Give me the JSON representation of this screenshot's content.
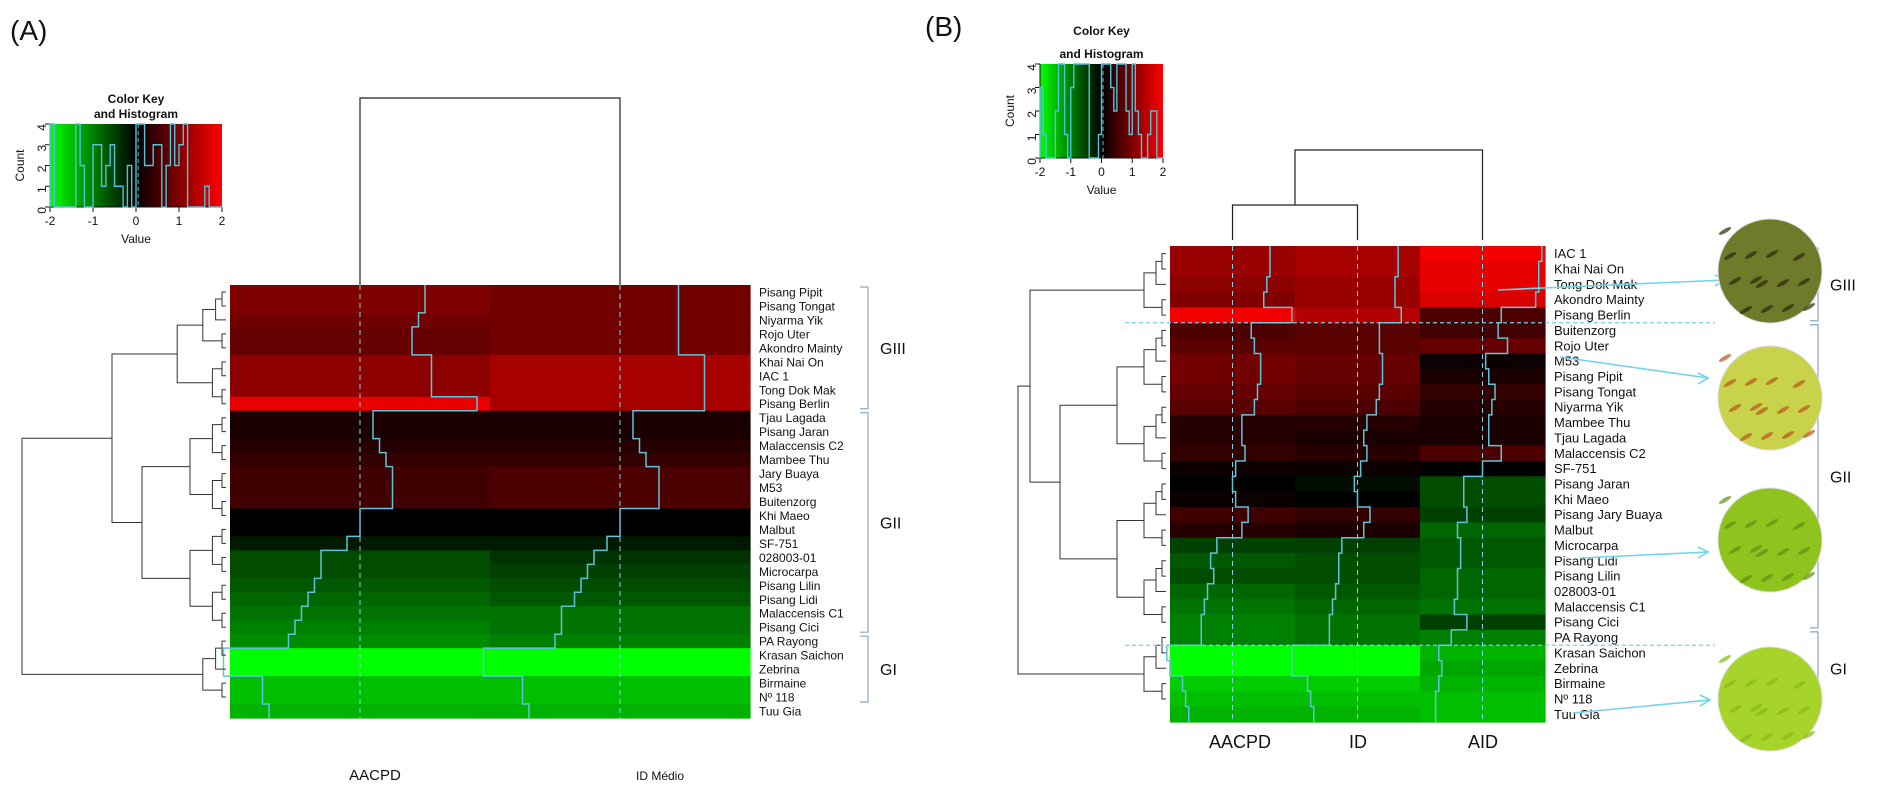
{
  "panels": [
    {
      "label": "(A)",
      "color_key": {
        "title_line1": "Color Key",
        "title_line2": "and Histogram",
        "xlabel": "Value",
        "ylabel": "Count",
        "xticks": [
          "-2",
          "-1",
          "0",
          "1",
          "2"
        ],
        "yticks": [
          "0",
          "1",
          "2",
          "3",
          "4"
        ]
      },
      "columns": [
        "AACPD",
        "ID Médio"
      ],
      "groups": [
        {
          "name": "GIII",
          "first_row": 0,
          "last_row": 8
        },
        {
          "name": "GII",
          "first_row": 9,
          "last_row": 24
        },
        {
          "name": "GI",
          "first_row": 25,
          "last_row": 29
        }
      ]
    },
    {
      "label": "(B)",
      "color_key": {
        "title_line1": "Color Key",
        "title_line2": "and Histogram",
        "xlabel": "Value",
        "ylabel": "Count",
        "xticks": [
          "-2",
          "-1",
          "0",
          "1",
          "2"
        ],
        "yticks": [
          "0",
          "1",
          "2",
          "3",
          "4"
        ]
      },
      "columns": [
        "AACPD",
        "ID",
        "AID"
      ],
      "groups": [
        {
          "name": "GIII",
          "first_row": 0,
          "last_row": 4
        },
        {
          "name": "GII",
          "first_row": 5,
          "last_row": 24
        },
        {
          "name": "GI",
          "first_row": 25,
          "last_row": 29
        }
      ]
    }
  ],
  "chart_data": [
    {
      "type": "heatmap",
      "title": "",
      "xlabel": "",
      "ylabel": "",
      "value_range": [
        -2,
        2
      ],
      "colormap": "green-black-red",
      "columns": [
        "AACPD",
        "ID Médio"
      ],
      "rows": [
        "Pisang Pipit",
        "Pisang Tongat",
        "Niyarma Yik",
        "Rojo Uter",
        "Akondro Mainty",
        "Khai Nai On",
        "IAC 1",
        "Tong Dok Mak",
        "Pisang Berlin",
        "Tjau Lagada",
        "Pisang Jaran",
        "Malaccensis C2",
        "Mambee Thu",
        "Jary Buaya",
        "M53",
        "Buitenzorg",
        "Khi Maeo",
        "Malbut",
        "SF-751",
        "028003-01",
        "Microcarpa",
        "Pisang Lilin",
        "Pisang Lidi",
        "Malaccensis C1",
        "Pisang Cici",
        "PA Rayong",
        "Krasan Saichon",
        "Zebrina",
        "Birmaine",
        "Nº 118",
        "Tuu Gia"
      ],
      "values": [
        [
          1.0,
          0.9
        ],
        [
          1.0,
          0.9
        ],
        [
          0.9,
          0.9
        ],
        [
          0.8,
          0.9
        ],
        [
          0.8,
          0.9
        ],
        [
          1.1,
          1.3
        ],
        [
          1.1,
          1.3
        ],
        [
          1.1,
          1.3
        ],
        [
          1.8,
          1.3
        ],
        [
          0.2,
          0.2
        ],
        [
          0.2,
          0.2
        ],
        [
          0.3,
          0.3
        ],
        [
          0.4,
          0.4
        ],
        [
          0.5,
          0.6
        ],
        [
          0.5,
          0.6
        ],
        [
          0.5,
          0.6
        ],
        [
          0.0,
          0.0
        ],
        [
          0.0,
          0.0
        ],
        [
          -0.2,
          -0.2
        ],
        [
          -0.6,
          -0.4
        ],
        [
          -0.6,
          -0.5
        ],
        [
          -0.7,
          -0.6
        ],
        [
          -0.8,
          -0.7
        ],
        [
          -0.9,
          -0.9
        ],
        [
          -1.0,
          -0.9
        ],
        [
          -1.1,
          -1.0
        ],
        [
          -2.1,
          -2.1
        ],
        [
          -2.1,
          -2.1
        ],
        [
          -1.5,
          -1.5
        ],
        [
          -1.5,
          -1.5
        ],
        [
          -1.4,
          -1.4
        ]
      ]
    },
    {
      "type": "heatmap",
      "title": "",
      "xlabel": "",
      "ylabel": "",
      "value_range": [
        -2,
        2
      ],
      "colormap": "green-black-red",
      "columns": [
        "AACPD",
        "ID",
        "AID"
      ],
      "rows": [
        "IAC 1",
        "Khai Nai On",
        "Tong Dok Mak",
        "Akondro Mainty",
        "Pisang Berlin",
        "Buitenzorg",
        "Rojo Uter",
        "M53",
        "Pisang Pipit",
        "Pisang Tongat",
        "Niyarma Yik",
        "Mambee Thu",
        "Tjau Lagada",
        "Malaccensis C2",
        "SF-751",
        "Pisang Jaran",
        "Khi Maeo",
        "Pisang Jary Buaya",
        "Malbut",
        "Microcarpa",
        "Pisang Lidi",
        "Pisang Lilin",
        "028003-01",
        "Malaccensis C1",
        "Pisang Cici",
        "PA Rayong",
        "Krasan Saichon",
        "Zebrina",
        "Birmaine",
        "Nº 118",
        "Tuu Gia"
      ],
      "values": [
        [
          1.2,
          1.3,
          1.9
        ],
        [
          1.2,
          1.3,
          1.8
        ],
        [
          1.1,
          1.2,
          1.8
        ],
        [
          1.0,
          1.2,
          1.7
        ],
        [
          1.9,
          1.4,
          0.6
        ],
        [
          0.6,
          0.7,
          0.5
        ],
        [
          0.7,
          0.7,
          0.8
        ],
        [
          0.9,
          0.8,
          0.1
        ],
        [
          0.9,
          0.8,
          0.2
        ],
        [
          0.8,
          0.7,
          0.4
        ],
        [
          0.7,
          0.6,
          0.3
        ],
        [
          0.3,
          0.3,
          0.2
        ],
        [
          0.3,
          0.2,
          0.2
        ],
        [
          0.4,
          0.3,
          0.6
        ],
        [
          0.1,
          0.1,
          0.0
        ],
        [
          0.0,
          -0.1,
          -0.6
        ],
        [
          0.1,
          0.0,
          -0.6
        ],
        [
          0.5,
          0.4,
          -0.5
        ],
        [
          0.3,
          0.2,
          -0.8
        ],
        [
          -0.5,
          -0.5,
          -0.7
        ],
        [
          -0.7,
          -0.6,
          -0.7
        ],
        [
          -0.6,
          -0.6,
          -0.8
        ],
        [
          -0.8,
          -0.7,
          -0.8
        ],
        [
          -0.9,
          -0.8,
          -0.9
        ],
        [
          -1.0,
          -0.9,
          -0.5
        ],
        [
          -1.0,
          -0.9,
          -1.0
        ],
        [
          -2.1,
          -2.1,
          -1.4
        ],
        [
          -2.0,
          -2.1,
          -1.3
        ],
        [
          -1.6,
          -1.6,
          -1.4
        ],
        [
          -1.5,
          -1.5,
          -1.5
        ],
        [
          -1.4,
          -1.4,
          -1.5
        ]
      ]
    }
  ]
}
